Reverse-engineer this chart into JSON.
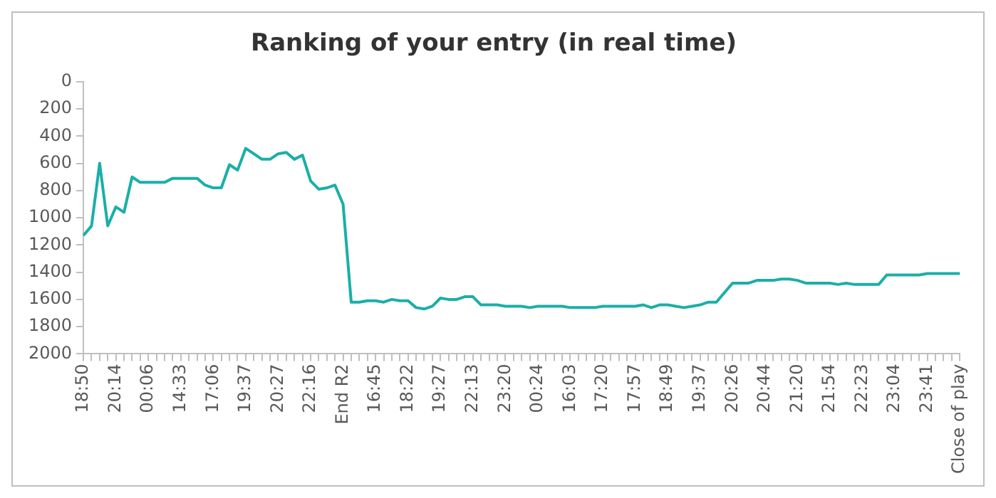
{
  "chart_data": {
    "type": "line",
    "title": "Ranking of your entry (in real time)",
    "categories": [
      "18:50",
      null,
      null,
      null,
      "20:14",
      null,
      null,
      null,
      "00:06",
      null,
      null,
      null,
      "14:33",
      null,
      null,
      null,
      "17:06",
      null,
      null,
      null,
      "19:37",
      null,
      null,
      null,
      "20:27",
      null,
      null,
      null,
      "22:16",
      null,
      null,
      null,
      "End R2",
      null,
      null,
      null,
      "16:45",
      null,
      null,
      null,
      "18:22",
      null,
      null,
      null,
      "19:27",
      null,
      null,
      null,
      "22:13",
      null,
      null,
      null,
      "23:20",
      null,
      null,
      null,
      "00:24",
      null,
      null,
      null,
      "16:03",
      null,
      null,
      null,
      "17:20",
      null,
      null,
      null,
      "17:57",
      null,
      null,
      null,
      "18:49",
      null,
      null,
      null,
      "19:37",
      null,
      null,
      null,
      "20:26",
      null,
      null,
      null,
      "20:44",
      null,
      null,
      null,
      "21:20",
      null,
      null,
      null,
      "21:54",
      null,
      null,
      null,
      "22:23",
      null,
      null,
      null,
      "23:04",
      null,
      null,
      null,
      "23:41",
      null,
      null,
      null,
      "Close of play"
    ],
    "series": [
      {
        "color": "#1aafa8",
        "values": [
          1130,
          1060,
          600,
          1060,
          920,
          960,
          700,
          740,
          740,
          740,
          740,
          710,
          710,
          710,
          710,
          760,
          780,
          780,
          610,
          650,
          490,
          530,
          570,
          570,
          530,
          520,
          570,
          540,
          730,
          790,
          780,
          760,
          900,
          1620,
          1620,
          1610,
          1610,
          1620,
          1600,
          1610,
          1610,
          1660,
          1670,
          1650,
          1590,
          1600,
          1600,
          1580,
          1580,
          1640,
          1640,
          1640,
          1650,
          1650,
          1650,
          1660,
          1650,
          1650,
          1650,
          1650,
          1660,
          1660,
          1660,
          1660,
          1650,
          1650,
          1650,
          1650,
          1650,
          1640,
          1660,
          1640,
          1640,
          1650,
          1660,
          1650,
          1640,
          1620,
          1620,
          1550,
          1480,
          1480,
          1480,
          1460,
          1460,
          1460,
          1450,
          1450,
          1460,
          1480,
          1480,
          1480,
          1480,
          1490,
          1480,
          1490,
          1490,
          1490,
          1490,
          1420,
          1420,
          1420,
          1420,
          1420,
          1410,
          1410,
          1410,
          1410,
          1410
        ]
      }
    ],
    "ylim": [
      2000,
      0
    ],
    "yticks": [
      0,
      200,
      400,
      600,
      800,
      1000,
      1200,
      1400,
      1600,
      1800,
      2000
    ],
    "grid": false,
    "legend": false,
    "marker": "none",
    "line_style": "solid"
  }
}
